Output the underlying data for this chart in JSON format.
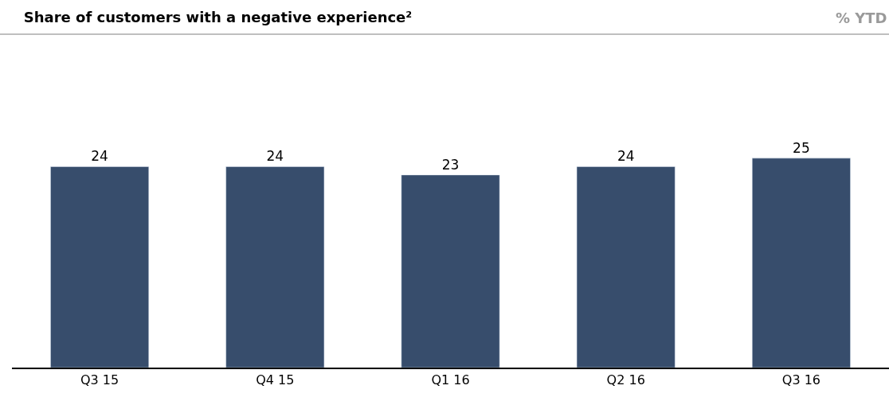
{
  "chart_data": {
    "type": "bar",
    "title": "Share of customers with a negative experience²",
    "subtitle": "% YTD",
    "categories": [
      "Q3 15",
      "Q4 15",
      "Q1 16",
      "Q2 16",
      "Q3 16"
    ],
    "values": [
      24,
      24,
      23,
      24,
      25
    ],
    "color": "#374d6c",
    "data_labels": true,
    "tick_labels": "x"
  }
}
